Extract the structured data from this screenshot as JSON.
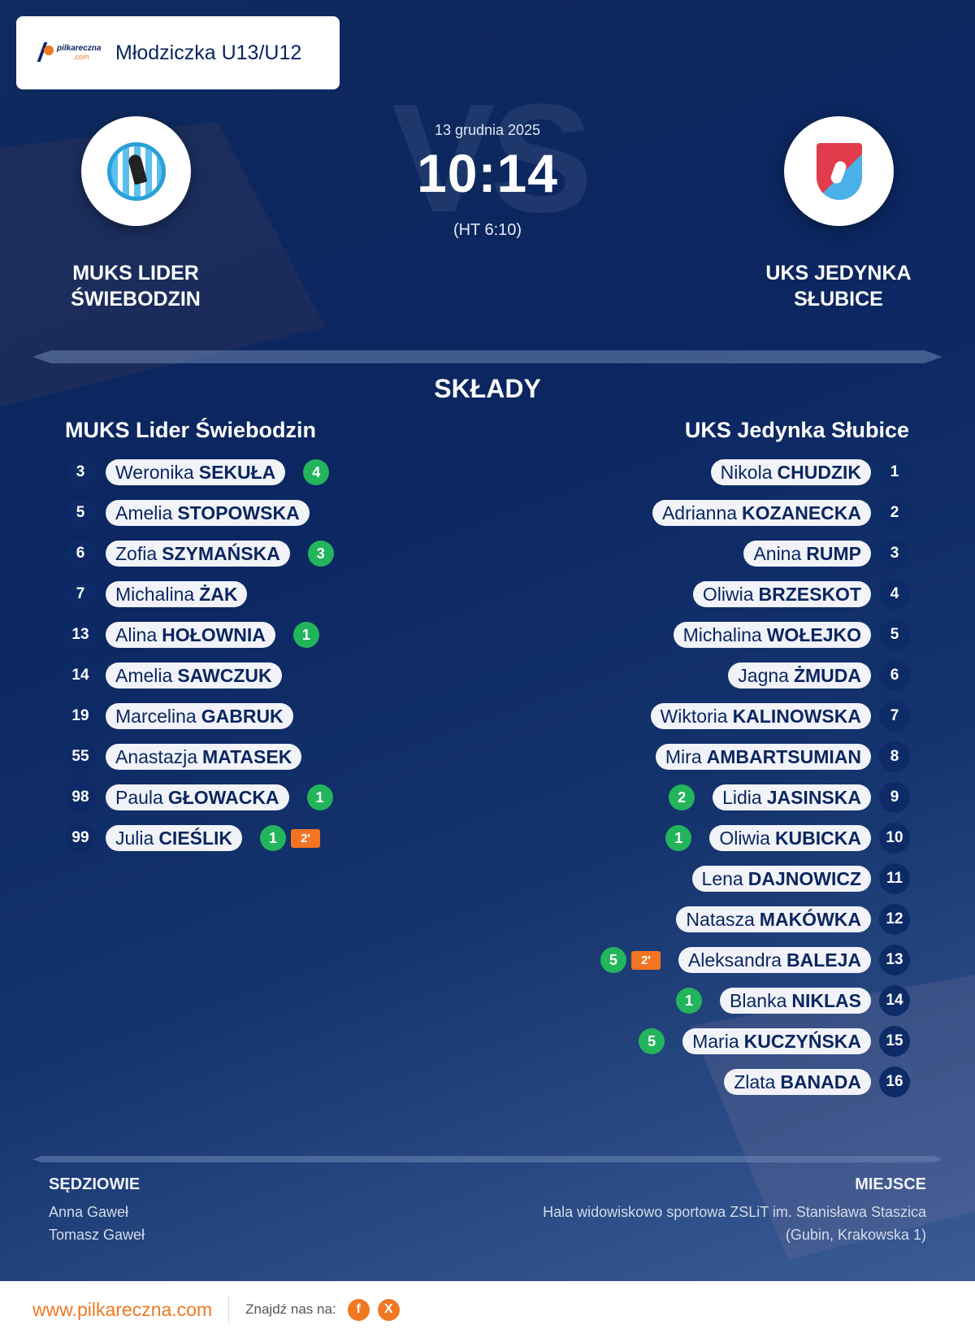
{
  "header": {
    "brand": {
      "line1": "pilkareczna",
      "line2": ".com"
    },
    "category": "Młodziczka U13/U12"
  },
  "match": {
    "date": "13 grudnia 2025",
    "score": "10:14",
    "halftime": "(HT 6:10)",
    "vs_watermark": "VS",
    "home_team": "MUKS LIDER ŚWIEBODZIN",
    "away_team": "UKS JEDYNKA SŁUBICE"
  },
  "lineups": {
    "title": "SKŁADY",
    "home": {
      "team": "MUKS Lider Świebodzin",
      "players": [
        {
          "number": "3",
          "first": "Weronika",
          "last": "SEKUŁA",
          "goals": "4",
          "penalty": null
        },
        {
          "number": "5",
          "first": "Amelia",
          "last": "STOPOWSKA",
          "goals": null,
          "penalty": null
        },
        {
          "number": "6",
          "first": "Zofia",
          "last": "SZYMAŃSKA",
          "goals": "3",
          "penalty": null
        },
        {
          "number": "7",
          "first": "Michalina",
          "last": "ŻAK",
          "goals": null,
          "penalty": null
        },
        {
          "number": "13",
          "first": "Alina",
          "last": "HOŁOWNIA",
          "goals": "1",
          "penalty": null
        },
        {
          "number": "14",
          "first": "Amelia",
          "last": "SAWCZUK",
          "goals": null,
          "penalty": null
        },
        {
          "number": "19",
          "first": "Marcelina",
          "last": "GABRUK",
          "goals": null,
          "penalty": null
        },
        {
          "number": "55",
          "first": "Anastazja",
          "last": "MATASEK",
          "goals": null,
          "penalty": null
        },
        {
          "number": "98",
          "first": "Paula",
          "last": "GŁOWACKA",
          "goals": "1",
          "penalty": null
        },
        {
          "number": "99",
          "first": "Julia",
          "last": "CIEŚLIK",
          "goals": "1",
          "penalty": "2'"
        }
      ]
    },
    "away": {
      "team": "UKS Jedynka Słubice",
      "players": [
        {
          "number": "1",
          "first": "Nikola",
          "last": "CHUDZIK",
          "goals": null,
          "penalty": null
        },
        {
          "number": "2",
          "first": "Adrianna",
          "last": "KOZANECKA",
          "goals": null,
          "penalty": null
        },
        {
          "number": "3",
          "first": "Anina",
          "last": "RUMP",
          "goals": null,
          "penalty": null
        },
        {
          "number": "4",
          "first": "Oliwia",
          "last": "BRZESKOT",
          "goals": null,
          "penalty": null
        },
        {
          "number": "5",
          "first": "Michalina",
          "last": "WOŁEJKO",
          "goals": null,
          "penalty": null
        },
        {
          "number": "6",
          "first": "Jagna",
          "last": "ŻMUDA",
          "goals": null,
          "penalty": null
        },
        {
          "number": "7",
          "first": "Wiktoria",
          "last": "KALINOWSKA",
          "goals": null,
          "penalty": null
        },
        {
          "number": "8",
          "first": "Mira",
          "last": "AMBARTSUMIAN",
          "goals": null,
          "penalty": null
        },
        {
          "number": "9",
          "first": "Lidia",
          "last": "JASINSKA",
          "goals": "2",
          "penalty": null
        },
        {
          "number": "10",
          "first": "Oliwia",
          "last": "KUBICKA",
          "goals": "1",
          "penalty": null
        },
        {
          "number": "11",
          "first": "Lena",
          "last": "DAJNOWICZ",
          "goals": null,
          "penalty": null
        },
        {
          "number": "12",
          "first": "Natasza",
          "last": "MAKÓWKA",
          "goals": null,
          "penalty": null
        },
        {
          "number": "13",
          "first": "Aleksandra",
          "last": "BALEJA",
          "goals": "5",
          "penalty": "2'"
        },
        {
          "number": "14",
          "first": "Blanka",
          "last": "NIKLAS",
          "goals": "1",
          "penalty": null
        },
        {
          "number": "15",
          "first": "Maria",
          "last": "KUCZYŃSKA",
          "goals": "5",
          "penalty": null
        },
        {
          "number": "16",
          "first": "Zlata",
          "last": "BANADA",
          "goals": null,
          "penalty": null
        }
      ]
    }
  },
  "officials": {
    "label": "SĘDZIOWIE",
    "names": [
      "Anna Gaweł",
      "Tomasz Gaweł"
    ]
  },
  "venue": {
    "label": "MIEJSCE",
    "name": "Hala widowiskowo sportowa ZSLiT im. Stanisława Staszica",
    "address": "(Gubin, Krakowska 1)"
  },
  "footer": {
    "website": "www.pilkareczna.com",
    "find_us": "Znajdź nas na:",
    "social": [
      {
        "icon": "facebook-icon",
        "glyph": "f"
      },
      {
        "icon": "x-icon",
        "glyph": "X"
      }
    ]
  },
  "colors": {
    "navy": "#0b2660",
    "goal_green": "#22b55b",
    "penalty_orange": "#f37421",
    "brand_orange": "#f07822"
  }
}
